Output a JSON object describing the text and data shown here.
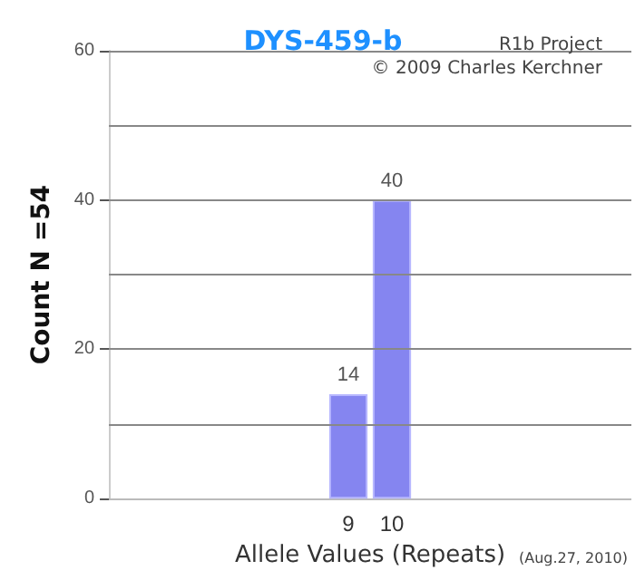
{
  "chart_data": {
    "type": "bar",
    "title": "DYS-459-b",
    "xlabel": "Allele Values (Repeats)",
    "ylabel": "Count N =54",
    "categories": [
      null,
      null,
      null,
      null,
      null,
      "9",
      "10",
      null,
      null,
      null,
      null,
      null
    ],
    "values": [
      null,
      null,
      null,
      null,
      null,
      14,
      40,
      null,
      null,
      null,
      null,
      null
    ],
    "color": "#8585f0",
    "ylim": [
      0,
      60
    ],
    "yticks": [
      0,
      {
        "value": 10,
        "label": null
      },
      20,
      {
        "value": 30,
        "label": null
      },
      40,
      {
        "value": 50,
        "label": null
      },
      60
    ],
    "grid": "y",
    "data_labels": true,
    "annotations": [
      "R1b Project",
      "© 2009 Charles Kerchner",
      "(Aug.27, 2010)"
    ]
  }
}
